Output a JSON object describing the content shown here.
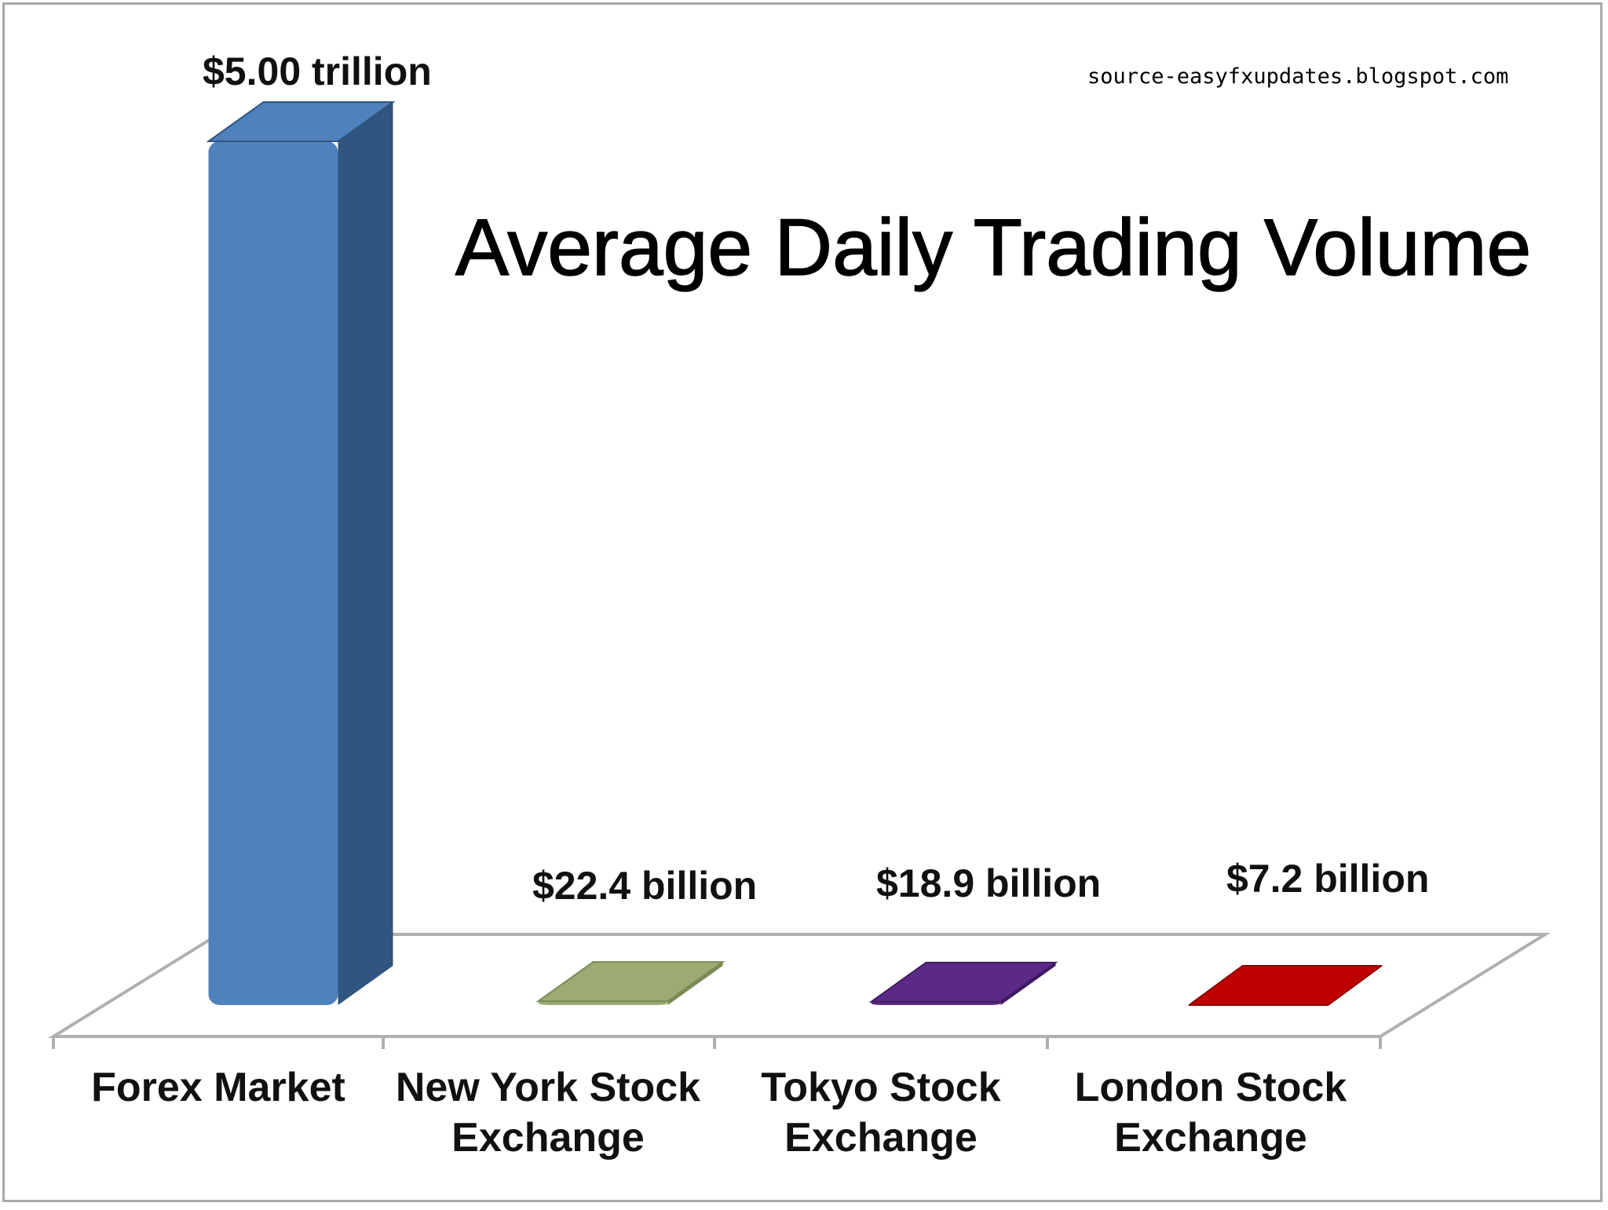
{
  "source": "source-easyfxupdates.blogspot.com",
  "chart_data": {
    "type": "bar",
    "title": "Average Daily Trading Volume",
    "categories": [
      [
        "Forex Market"
      ],
      [
        "New York Stock",
        "Exchange"
      ],
      [
        "Tokyo Stock",
        "Exchange"
      ],
      [
        "London Stock",
        "Exchange"
      ]
    ],
    "values_billion_usd": [
      5000,
      22.4,
      18.9,
      7.2
    ],
    "data_labels": [
      "$5.00 trillion",
      "$22.4 billion",
      "$18.9 billion",
      "$7.2 billion"
    ],
    "colors": [
      "#4f81bd",
      "#9bab72",
      "#5b2a86",
      "#c00000"
    ],
    "side_colors": [
      "#2f5580",
      "#7a8a56",
      "#3f1a62",
      "#8a0000"
    ],
    "grid": false,
    "legend": "none"
  }
}
